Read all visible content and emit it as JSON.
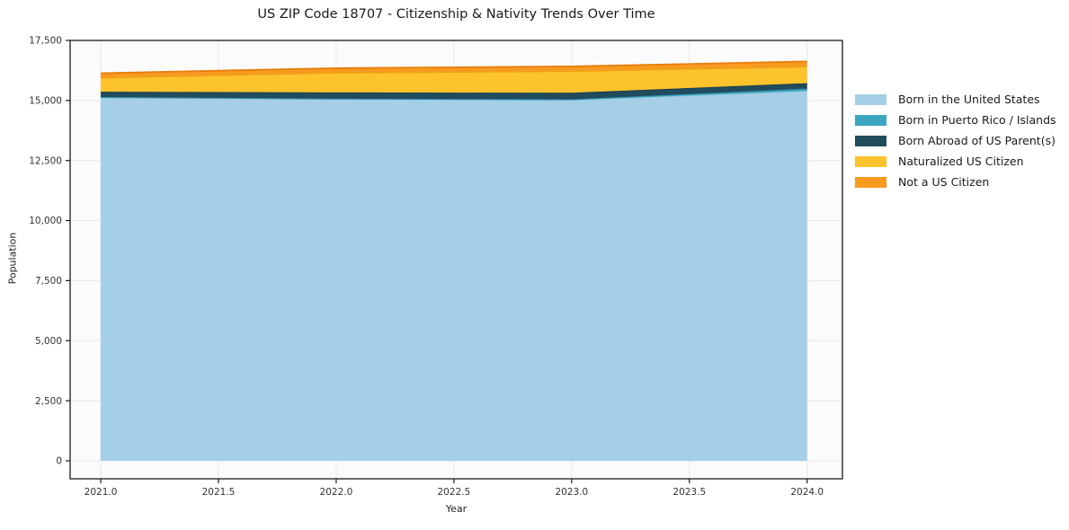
{
  "chart_data": {
    "type": "area",
    "stacked": true,
    "title": "US ZIP Code 18707 - Citizenship & Nativity Trends Over Time",
    "xlabel": "Year",
    "ylabel": "Population",
    "x": [
      2021,
      2022,
      2023,
      2024
    ],
    "series": [
      {
        "name": "Born in the United States",
        "fill": "#a5cfe6",
        "line": "#8fc3dd",
        "values": [
          15120,
          15050,
          15020,
          15400
        ]
      },
      {
        "name": "Born in Puerto Rico / Islands",
        "fill": "#3ba5bf",
        "line": "#3095b1",
        "values": [
          25,
          25,
          25,
          95
        ]
      },
      {
        "name": "Born Abroad of US Parent(s)",
        "fill": "#214c5e",
        "line": "#183e4f",
        "values": [
          220,
          260,
          275,
          225
        ]
      },
      {
        "name": "Naturalized US Citizen",
        "fill": "#fcc32d",
        "line": "#eda412",
        "values": [
          580,
          820,
          900,
          690
        ]
      },
      {
        "name": "Not a US Citizen",
        "fill": "#f79b20",
        "line": "#e67e0d",
        "values": [
          190,
          190,
          200,
          215
        ]
      }
    ],
    "xticks": [
      2021.0,
      2021.5,
      2022.0,
      2022.5,
      2023.0,
      2023.5,
      2024.0
    ],
    "yticks": [
      0,
      2500,
      5000,
      7500,
      10000,
      12500,
      15000,
      17500
    ],
    "xlim": [
      2020.87,
      2024.15
    ],
    "ylim": [
      -750,
      17500
    ],
    "grid": true,
    "legend_position": "outside-right",
    "colors": {
      "spine": "#1a1a1a",
      "tick_label": "#333333",
      "grid": "#e8e8e8",
      "plot_bg": "#fbfbfb"
    }
  }
}
